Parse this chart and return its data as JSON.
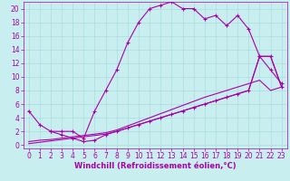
{
  "bg_color": "#c8eef0",
  "grid_color": "#aadddd",
  "line_color": "#aa00aa",
  "marker_color": "#aa00aa",
  "xlabel": "Windchill (Refroidissement éolien,°C)",
  "xlabel_color": "#aa00aa",
  "xlim_min": -0.5,
  "xlim_max": 23.5,
  "ylim_min": -0.5,
  "ylim_max": 21.0,
  "xticks": [
    0,
    1,
    2,
    3,
    4,
    5,
    6,
    7,
    8,
    9,
    10,
    11,
    12,
    13,
    14,
    15,
    16,
    17,
    18,
    19,
    20,
    21,
    22,
    23
  ],
  "yticks": [
    0,
    2,
    4,
    6,
    8,
    10,
    12,
    14,
    16,
    18,
    20
  ],
  "series1_x": [
    0,
    1,
    2,
    3,
    4,
    5,
    6,
    7,
    8,
    9,
    10,
    11,
    12,
    13,
    14,
    15,
    16,
    17,
    18,
    19,
    20,
    21,
    22,
    23
  ],
  "series1_y": [
    5,
    3,
    2,
    2,
    2,
    1,
    5,
    8,
    11,
    15,
    18,
    20,
    20.5,
    21,
    20,
    20,
    18.5,
    19,
    17.5,
    19,
    17,
    13,
    11,
    9
  ],
  "series2_x": [
    0,
    1,
    2,
    3,
    4,
    5,
    6,
    7,
    8,
    9,
    10,
    11,
    12,
    13,
    14,
    15,
    16,
    17,
    18,
    19,
    20,
    21,
    22,
    23
  ],
  "series2_y": [
    0.5,
    0.7,
    0.8,
    1.0,
    1.2,
    1.4,
    1.6,
    1.8,
    2.2,
    2.8,
    3.4,
    4.0,
    4.6,
    5.2,
    5.8,
    6.4,
    7.0,
    7.5,
    8.0,
    8.5,
    9.0,
    9.5,
    8.0,
    8.5
  ],
  "series3_x": [
    0,
    1,
    2,
    3,
    4,
    5,
    6,
    7,
    8,
    9,
    10,
    11,
    12,
    13,
    14,
    15,
    16,
    17,
    18,
    19,
    20,
    21,
    22,
    23
  ],
  "series3_y": [
    0.2,
    0.4,
    0.6,
    0.8,
    1.0,
    1.2,
    1.4,
    1.6,
    2.0,
    2.5,
    3.0,
    3.5,
    4.0,
    4.5,
    5.0,
    5.5,
    6.0,
    6.5,
    7.0,
    7.5,
    8.0,
    13.0,
    13.0,
    8.5
  ],
  "series4_x": [
    2,
    3,
    4,
    5,
    6,
    7,
    8,
    9,
    10,
    11,
    12,
    13,
    14,
    15,
    16,
    17,
    18,
    19,
    20,
    21,
    22,
    23
  ],
  "series4_y": [
    2,
    1.5,
    1.0,
    0.5,
    0.7,
    1.5,
    2.0,
    2.5,
    3.0,
    3.5,
    4.0,
    4.5,
    5.0,
    5.5,
    6.0,
    6.5,
    7.0,
    7.5,
    8.0,
    13.0,
    13.0,
    8.5
  ],
  "tick_fontsize": 5.5,
  "xlabel_fontsize": 6.0,
  "linewidth": 0.8,
  "markersize": 3.5
}
